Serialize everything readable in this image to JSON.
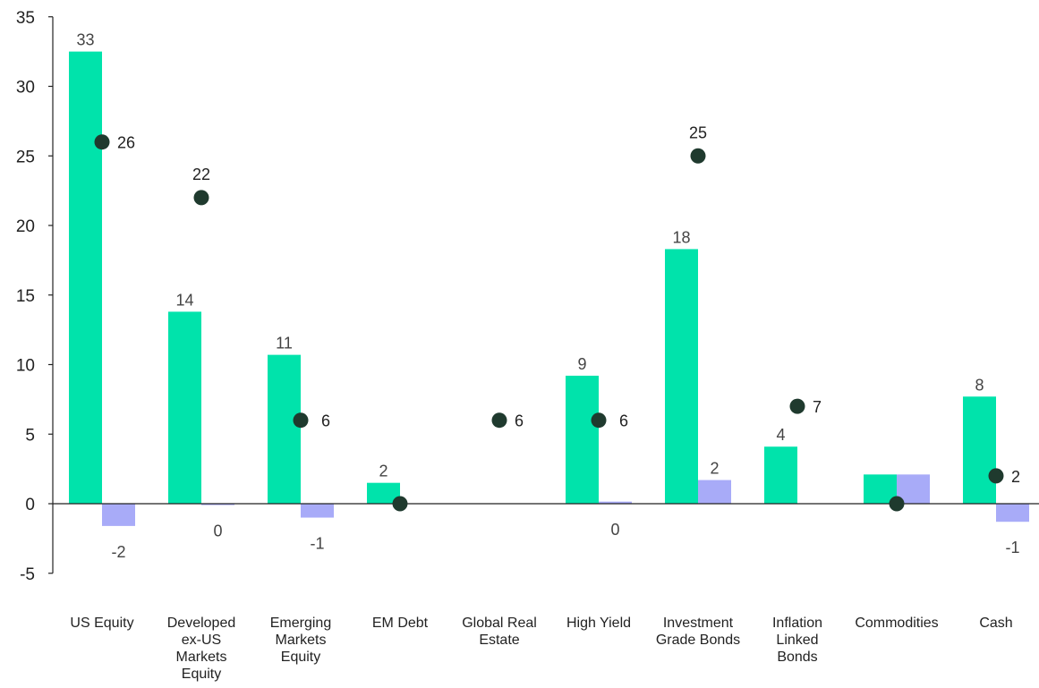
{
  "chart_data": {
    "type": "bar",
    "title": "",
    "xlabel": "",
    "ylabel": "",
    "ylim": [
      -5,
      35
    ],
    "yticks": [
      -5,
      0,
      5,
      10,
      15,
      20,
      25,
      30,
      35
    ],
    "grid": false,
    "legend": "none",
    "categories": [
      [
        "US Equity"
      ],
      [
        "Developed",
        "ex-US",
        "Markets",
        "Equity"
      ],
      [
        "Emerging",
        "Markets",
        "Equity"
      ],
      [
        "EM Debt"
      ],
      [
        "Global Real",
        "Estate"
      ],
      [
        "High Yield"
      ],
      [
        "Investment",
        "Grade Bonds"
      ],
      [
        "Inflation",
        "Linked",
        "Bonds"
      ],
      [
        "Commodities"
      ],
      [
        "Cash"
      ]
    ],
    "series": [
      {
        "kind": "bar",
        "color": "#00e3ab",
        "values": [
          32.5,
          13.8,
          10.7,
          1.5,
          0,
          9.2,
          18.3,
          4.1,
          2.1,
          7.7
        ],
        "labels": [
          "33",
          "14",
          "11",
          "2",
          "",
          "9",
          "18",
          "4",
          "",
          "8"
        ]
      },
      {
        "kind": "bar",
        "color": "#a8abf8",
        "values": [
          -1.6,
          -0.1,
          -1.0,
          0,
          0,
          0.15,
          1.7,
          0,
          2.1,
          -1.3
        ],
        "labels": [
          "-2",
          "0",
          "-1",
          "",
          "",
          "0",
          "2",
          "",
          "",
          "-1"
        ]
      },
      {
        "kind": "dot",
        "color": "#1f3a2e",
        "values": [
          26,
          22,
          6,
          0,
          6,
          6,
          25,
          7,
          0,
          2
        ],
        "labels": [
          "26",
          "22",
          "6",
          "",
          "6",
          "6",
          "25",
          "7",
          "",
          "2"
        ]
      }
    ]
  }
}
